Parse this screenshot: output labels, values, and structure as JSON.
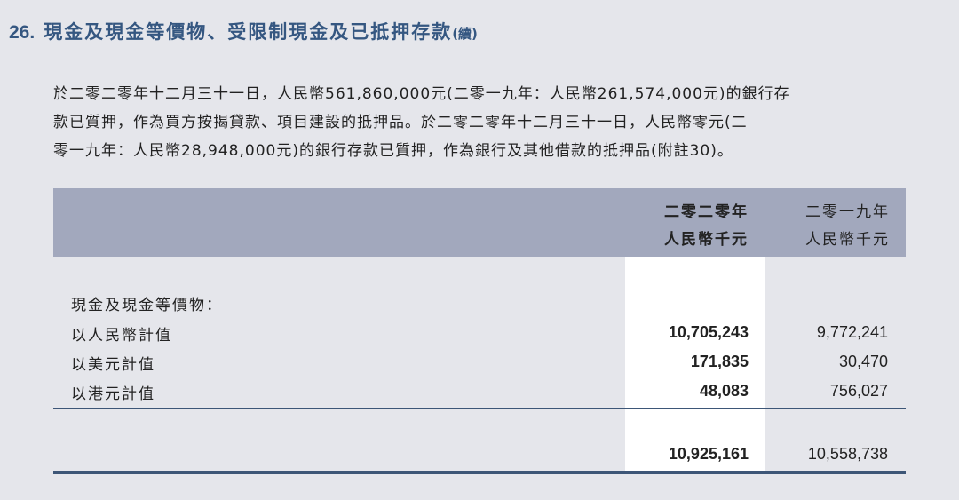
{
  "title": {
    "number": "26.",
    "text": "現金及現金等價物、受限制現金及已抵押存款",
    "suffix": "(續)"
  },
  "paragraph": [
    "於二零二零年十二月三十一日，人民幣561,860,000元(二零一九年：人民幣261,574,000元)的銀行存",
    "款已質押，作為買方按揭貸款、項目建設的抵押品。於二零二零年十二月三十一日，人民幣零元(二",
    "零一九年：人民幣28,948,000元)的銀行存款已質押，作為銀行及其他借款的抵押品(附註30)。"
  ],
  "table": {
    "columns": [
      {
        "year": "二零二零年",
        "unit": "人民幣千元"
      },
      {
        "year": "二零一九年",
        "unit": "人民幣千元"
      }
    ],
    "section_label": "現金及現金等價物：",
    "rows": [
      {
        "label": "以人民幣計值",
        "v2020": "10,705,243",
        "v2019": "9,772,241"
      },
      {
        "label": "以美元計值",
        "v2020": "171,835",
        "v2019": "30,470"
      },
      {
        "label": "以港元計值",
        "v2020": "48,083",
        "v2019": "756,027"
      }
    ],
    "total": {
      "v2020": "10,925,161",
      "v2019": "10,558,738"
    }
  },
  "colors": {
    "title": "#355781",
    "header_band": "#a2a8bd",
    "background": "#e5e6eb",
    "rule": "#3d5677"
  }
}
